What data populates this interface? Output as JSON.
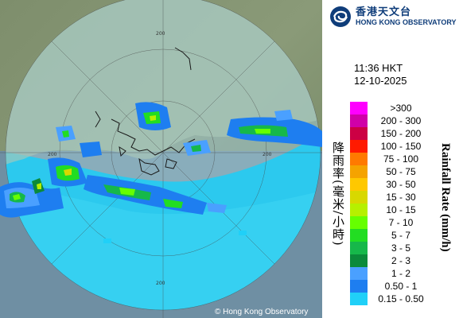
{
  "header": {
    "logo_chinese": "香港天文台",
    "logo_english": "HONG KONG OBSERVATORY",
    "logo_icon": "hko-swirl-logo-icon"
  },
  "timestamp": {
    "time": "11:36 HKT",
    "date": "12-10-2025"
  },
  "legend": {
    "title_chinese": "降雨率(毫米/小時)",
    "title_english": "Rainfall Rate (mm/h)",
    "items": [
      {
        "label": ">300",
        "color": "#ff00ff"
      },
      {
        "label": "200 - 300",
        "color": "#d000a8"
      },
      {
        "label": "150 - 200",
        "color": "#cc0044"
      },
      {
        "label": "100 - 150",
        "color": "#ff1a00"
      },
      {
        "label": "75 - 100",
        "color": "#ff7a00"
      },
      {
        "label": "50 - 75",
        "color": "#f5a300"
      },
      {
        "label": "30 - 50",
        "color": "#ffc800"
      },
      {
        "label": "15 - 30",
        "color": "#d8d800"
      },
      {
        "label": "10 - 15",
        "color": "#b6f000"
      },
      {
        "label": "7 - 10",
        "color": "#66ff00"
      },
      {
        "label": "5 - 7",
        "color": "#22dd22"
      },
      {
        "label": "3 - 5",
        "color": "#16b84a"
      },
      {
        "label": "2 - 3",
        "color": "#0b8a3a"
      },
      {
        "label": "1 - 2",
        "color": "#4aa0ff"
      },
      {
        "label": "0.50 - 1",
        "color": "#1e7ef0"
      },
      {
        "label": "0.15 - 0.50",
        "color": "#20d0f8"
      }
    ]
  },
  "map": {
    "ring_labels": [
      "200",
      "200",
      "200",
      "200"
    ],
    "copyright": "© Hong Kong Observatory"
  }
}
